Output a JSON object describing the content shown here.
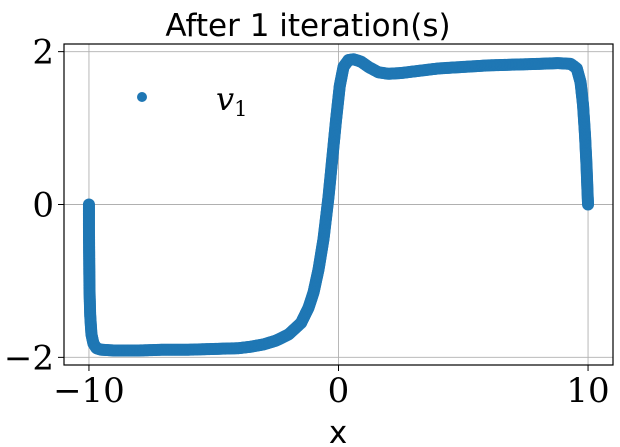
{
  "chart_data": {
    "type": "scatter",
    "title": "After 1 iteration(s)",
    "xlabel": "x",
    "ylabel": "",
    "xlim": [
      -11.0,
      11.0
    ],
    "ylim": [
      -2.1,
      2.1
    ],
    "xticks": [
      -10,
      0,
      10
    ],
    "xtick_labels": [
      "−10",
      "0",
      "10"
    ],
    "yticks": [
      -2,
      0,
      2
    ],
    "ytick_labels": [
      "−2",
      "0",
      "2"
    ],
    "grid": true,
    "legend_position": "top-left",
    "series": [
      {
        "name": "v",
        "name_subscript": "1",
        "color": "#1f77b4",
        "points": [
          [
            -10.0,
            0.0
          ],
          [
            -10.0,
            -0.3
          ],
          [
            -9.99,
            -0.7
          ],
          [
            -9.98,
            -1.1
          ],
          [
            -9.95,
            -1.45
          ],
          [
            -9.9,
            -1.7
          ],
          [
            -9.82,
            -1.82
          ],
          [
            -9.7,
            -1.88
          ],
          [
            -9.5,
            -1.9
          ],
          [
            -9.0,
            -1.91
          ],
          [
            -8.0,
            -1.91
          ],
          [
            -7.0,
            -1.9
          ],
          [
            -6.0,
            -1.9
          ],
          [
            -5.0,
            -1.89
          ],
          [
            -4.0,
            -1.88
          ],
          [
            -3.5,
            -1.86
          ],
          [
            -3.0,
            -1.83
          ],
          [
            -2.5,
            -1.78
          ],
          [
            -2.0,
            -1.7
          ],
          [
            -1.5,
            -1.55
          ],
          [
            -1.2,
            -1.35
          ],
          [
            -1.0,
            -1.15
          ],
          [
            -0.8,
            -0.85
          ],
          [
            -0.6,
            -0.45
          ],
          [
            -0.4,
            0.1
          ],
          [
            -0.25,
            0.6
          ],
          [
            -0.1,
            1.1
          ],
          [
            0.05,
            1.55
          ],
          [
            0.2,
            1.8
          ],
          [
            0.4,
            1.89
          ],
          [
            0.6,
            1.9
          ],
          [
            0.9,
            1.87
          ],
          [
            1.2,
            1.8
          ],
          [
            1.6,
            1.73
          ],
          [
            2.0,
            1.71
          ],
          [
            2.5,
            1.72
          ],
          [
            3.0,
            1.74
          ],
          [
            4.0,
            1.78
          ],
          [
            5.0,
            1.8
          ],
          [
            6.0,
            1.82
          ],
          [
            7.0,
            1.83
          ],
          [
            8.0,
            1.84
          ],
          [
            8.8,
            1.85
          ],
          [
            9.3,
            1.84
          ],
          [
            9.55,
            1.78
          ],
          [
            9.7,
            1.6
          ],
          [
            9.8,
            1.3
          ],
          [
            9.88,
            0.9
          ],
          [
            9.94,
            0.5
          ],
          [
            9.98,
            0.15
          ],
          [
            10.0,
            0.0
          ]
        ]
      }
    ]
  }
}
